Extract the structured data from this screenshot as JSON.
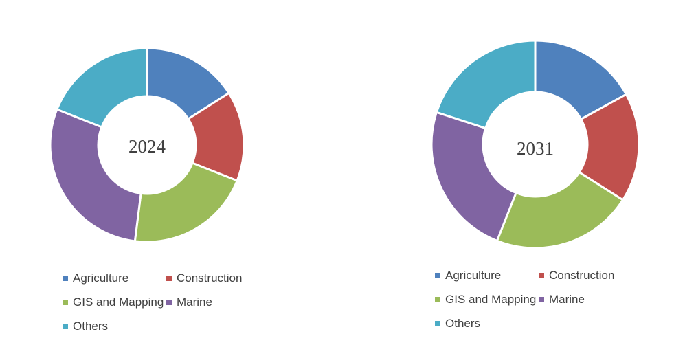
{
  "chart_data": [
    {
      "type": "pie",
      "title": "",
      "center_label": "2024",
      "categories": [
        "Agriculture",
        "Construction",
        "GIS and Mapping",
        "Marine",
        "Others"
      ],
      "values": [
        16,
        15,
        21,
        29,
        19
      ],
      "colors": [
        "#4f81bd",
        "#c0504d",
        "#9bbb59",
        "#8064a2",
        "#4bacc6"
      ],
      "legend": "bottom"
    },
    {
      "type": "pie",
      "title": "",
      "center_label": "2031",
      "categories": [
        "Agriculture",
        "Construction",
        "GIS and Mapping",
        "Marine",
        "Others"
      ],
      "values": [
        17,
        17,
        22,
        24,
        20
      ],
      "colors": [
        "#4f81bd",
        "#c0504d",
        "#9bbb59",
        "#8064a2",
        "#4bacc6"
      ],
      "legend": "bottom"
    }
  ]
}
